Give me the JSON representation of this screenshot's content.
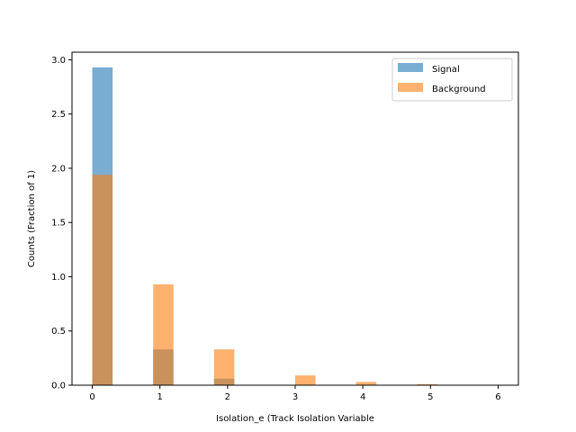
{
  "chart_data": {
    "type": "bar",
    "xlabel": "Isolation_e (Track Isolation Variable",
    "ylabel": "Counts (Fraction of 1)",
    "xlim": [
      -0.3,
      6.3
    ],
    "ylim": [
      0,
      3.07
    ],
    "xticks": [
      0,
      1,
      2,
      3,
      4,
      5,
      6
    ],
    "yticks": [
      0.0,
      0.5,
      1.0,
      1.5,
      2.0,
      2.5,
      3.0
    ],
    "ytick_labels": [
      "0.0",
      "0.5",
      "1.0",
      "1.5",
      "2.0",
      "2.5",
      "3.0"
    ],
    "bin_width": 0.3,
    "bin_starts": [
      0.0,
      0.9,
      1.8,
      3.0,
      3.9,
      4.8
    ],
    "legend_position": "top-right",
    "series": [
      {
        "name": "Signal",
        "color": "#1f77b4",
        "opacity": 0.6,
        "values": [
          2.93,
          0.33,
          0.06,
          0.0,
          0.0,
          0.0
        ]
      },
      {
        "name": "Background",
        "color": "#ff7f0e",
        "opacity": 0.6,
        "values": [
          1.94,
          0.93,
          0.33,
          0.09,
          0.03,
          0.01
        ]
      }
    ]
  }
}
